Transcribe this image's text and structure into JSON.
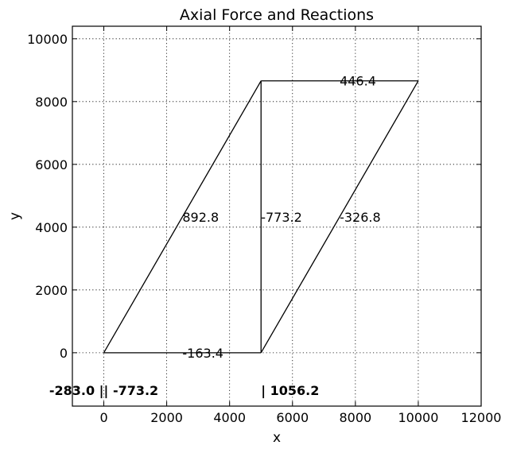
{
  "chart_data": {
    "type": "line",
    "title": "Axial Force and Reactions",
    "xlabel": "x",
    "ylabel": "y",
    "xlim": [
      -1000,
      12000
    ],
    "ylim": [
      -1700,
      10400
    ],
    "xticks": [
      "0",
      "2000",
      "4000",
      "6000",
      "8000",
      "10000",
      "12000"
    ],
    "xtick_values": [
      0,
      2000,
      4000,
      6000,
      8000,
      10000,
      12000
    ],
    "yticks": [
      "0",
      "2000",
      "4000",
      "6000",
      "8000",
      "10000"
    ],
    "ytick_values": [
      0,
      2000,
      4000,
      6000,
      8000,
      10000
    ],
    "grid": true,
    "members": [
      {
        "x": [
          0,
          5000
        ],
        "y": [
          0,
          8660
        ],
        "label": "892.8",
        "label_x": 2500,
        "label_y": 4330
      },
      {
        "x": [
          5000,
          5000
        ],
        "y": [
          0,
          8660
        ],
        "label": "-773.2",
        "label_x": 5000,
        "label_y": 4330
      },
      {
        "x": [
          5000,
          10000
        ],
        "y": [
          0,
          8660
        ],
        "label": "-326.8",
        "label_x": 7500,
        "label_y": 4330
      },
      {
        "x": [
          5000,
          10000
        ],
        "y": [
          8660,
          8660
        ],
        "label": "446.4",
        "label_x": 7500,
        "label_y": 8660
      },
      {
        "x": [
          0,
          5000
        ],
        "y": [
          0,
          0
        ],
        "label": "-163.4",
        "label_x": 2500,
        "label_y": 0
      }
    ],
    "reactions": [
      {
        "text": "-283.0 || -773.2",
        "x": 0,
        "y": -1200
      },
      {
        "text": "| 1056.2",
        "x": 5000,
        "y": -1200
      }
    ]
  }
}
